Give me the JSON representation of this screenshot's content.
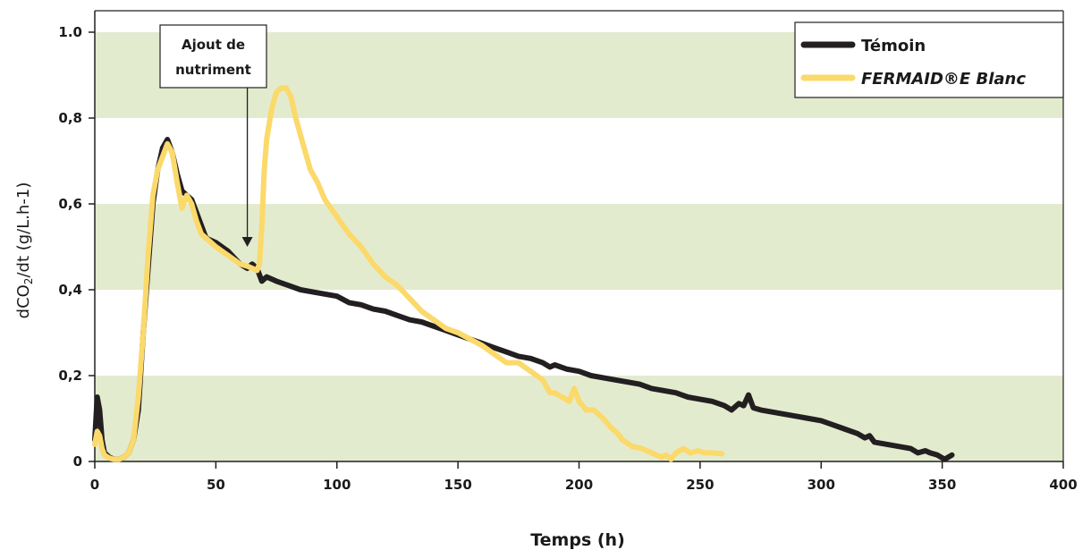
{
  "chart_data": {
    "type": "line",
    "title": "",
    "xlabel": "Temps (h)",
    "ylabel": {
      "prefix": "dCO",
      "sub": "2",
      "suffix": "/dt (g/L.h-1)"
    },
    "xlim": [
      0,
      400
    ],
    "ylim": [
      0,
      1.05
    ],
    "x_ticks": [
      {
        "value": 0,
        "label": "0"
      },
      {
        "value": 50,
        "label": "50"
      },
      {
        "value": 100,
        "label": "100"
      },
      {
        "value": 150,
        "label": "150"
      },
      {
        "value": 200,
        "label": "200"
      },
      {
        "value": 250,
        "label": "250"
      },
      {
        "value": 300,
        "label": "300"
      },
      {
        "value": 350,
        "label": "350"
      },
      {
        "value": 400,
        "label": "400"
      }
    ],
    "y_ticks": [
      {
        "value": 0,
        "label": "0"
      },
      {
        "value": 0.2,
        "label": "0,2"
      },
      {
        "value": 0.4,
        "label": "0,4"
      },
      {
        "value": 0.6,
        "label": "0,6"
      },
      {
        "value": 0.8,
        "label": "0,8"
      },
      {
        "value": 1.0,
        "label": "1.0"
      }
    ],
    "bands": [
      [
        0,
        0.2
      ],
      [
        0.4,
        0.6
      ],
      [
        0.8,
        1.0
      ]
    ],
    "band_color": "#e3ebcf",
    "legend_position": "top-right",
    "annotation": {
      "lines": [
        "Ajout de",
        "nutriment"
      ],
      "x": 63,
      "arrow_to_y": 0.5
    },
    "series": [
      {
        "name": "Témoin",
        "color": "#231f20",
        "points": [
          [
            0,
            0.05
          ],
          [
            1,
            0.15
          ],
          [
            2,
            0.12
          ],
          [
            3,
            0.05
          ],
          [
            4,
            0.02
          ],
          [
            6,
            0.01
          ],
          [
            8,
            0.005
          ],
          [
            10,
            0.005
          ],
          [
            12,
            0.01
          ],
          [
            14,
            0.02
          ],
          [
            16,
            0.05
          ],
          [
            18,
            0.12
          ],
          [
            20,
            0.3
          ],
          [
            22,
            0.45
          ],
          [
            24,
            0.6
          ],
          [
            26,
            0.68
          ],
          [
            28,
            0.73
          ],
          [
            30,
            0.75
          ],
          [
            32,
            0.72
          ],
          [
            34,
            0.67
          ],
          [
            36,
            0.63
          ],
          [
            38,
            0.62
          ],
          [
            40,
            0.61
          ],
          [
            42,
            0.58
          ],
          [
            44,
            0.55
          ],
          [
            46,
            0.52
          ],
          [
            50,
            0.51
          ],
          [
            55,
            0.49
          ],
          [
            60,
            0.46
          ],
          [
            63,
            0.45
          ],
          [
            65,
            0.46
          ],
          [
            67,
            0.45
          ],
          [
            69,
            0.42
          ],
          [
            71,
            0.43
          ],
          [
            75,
            0.42
          ],
          [
            80,
            0.41
          ],
          [
            85,
            0.4
          ],
          [
            90,
            0.395
          ],
          [
            95,
            0.39
          ],
          [
            100,
            0.385
          ],
          [
            105,
            0.37
          ],
          [
            110,
            0.365
          ],
          [
            115,
            0.355
          ],
          [
            120,
            0.35
          ],
          [
            125,
            0.34
          ],
          [
            130,
            0.33
          ],
          [
            135,
            0.325
          ],
          [
            140,
            0.315
          ],
          [
            145,
            0.305
          ],
          [
            150,
            0.295
          ],
          [
            155,
            0.285
          ],
          [
            160,
            0.275
          ],
          [
            165,
            0.265
          ],
          [
            170,
            0.255
          ],
          [
            175,
            0.245
          ],
          [
            180,
            0.24
          ],
          [
            185,
            0.23
          ],
          [
            188,
            0.22
          ],
          [
            190,
            0.225
          ],
          [
            195,
            0.215
          ],
          [
            200,
            0.21
          ],
          [
            205,
            0.2
          ],
          [
            210,
            0.195
          ],
          [
            215,
            0.19
          ],
          [
            220,
            0.185
          ],
          [
            225,
            0.18
          ],
          [
            230,
            0.17
          ],
          [
            235,
            0.165
          ],
          [
            240,
            0.16
          ],
          [
            245,
            0.15
          ],
          [
            250,
            0.145
          ],
          [
            255,
            0.14
          ],
          [
            260,
            0.13
          ],
          [
            263,
            0.12
          ],
          [
            266,
            0.135
          ],
          [
            268,
            0.13
          ],
          [
            270,
            0.155
          ],
          [
            272,
            0.125
          ],
          [
            275,
            0.12
          ],
          [
            280,
            0.115
          ],
          [
            285,
            0.11
          ],
          [
            290,
            0.105
          ],
          [
            295,
            0.1
          ],
          [
            300,
            0.095
          ],
          [
            305,
            0.085
          ],
          [
            310,
            0.075
          ],
          [
            315,
            0.065
          ],
          [
            318,
            0.055
          ],
          [
            320,
            0.06
          ],
          [
            322,
            0.045
          ],
          [
            327,
            0.04
          ],
          [
            332,
            0.035
          ],
          [
            337,
            0.03
          ],
          [
            340,
            0.02
          ],
          [
            343,
            0.025
          ],
          [
            345,
            0.02
          ],
          [
            348,
            0.015
          ],
          [
            351,
            0.005
          ],
          [
            354,
            0.015
          ]
        ]
      },
      {
        "name": "FERMAID®E Blanc",
        "color": "#fbd96a",
        "points": [
          [
            0,
            0.04
          ],
          [
            1,
            0.07
          ],
          [
            2,
            0.06
          ],
          [
            3,
            0.03
          ],
          [
            4,
            0.015
          ],
          [
            6,
            0.008
          ],
          [
            8,
            0.005
          ],
          [
            10,
            0.005
          ],
          [
            12,
            0.01
          ],
          [
            14,
            0.02
          ],
          [
            16,
            0.05
          ],
          [
            18,
            0.15
          ],
          [
            20,
            0.3
          ],
          [
            22,
            0.48
          ],
          [
            24,
            0.62
          ],
          [
            26,
            0.68
          ],
          [
            28,
            0.71
          ],
          [
            30,
            0.74
          ],
          [
            32,
            0.72
          ],
          [
            34,
            0.65
          ],
          [
            36,
            0.59
          ],
          [
            38,
            0.62
          ],
          [
            40,
            0.6
          ],
          [
            42,
            0.56
          ],
          [
            44,
            0.53
          ],
          [
            46,
            0.52
          ],
          [
            50,
            0.5
          ],
          [
            55,
            0.48
          ],
          [
            60,
            0.46
          ],
          [
            63,
            0.455
          ],
          [
            65,
            0.45
          ],
          [
            67,
            0.445
          ],
          [
            68,
            0.46
          ],
          [
            69,
            0.55
          ],
          [
            70,
            0.68
          ],
          [
            71,
            0.75
          ],
          [
            73,
            0.82
          ],
          [
            75,
            0.86
          ],
          [
            77,
            0.87
          ],
          [
            79,
            0.87
          ],
          [
            81,
            0.85
          ],
          [
            83,
            0.8
          ],
          [
            86,
            0.74
          ],
          [
            89,
            0.68
          ],
          [
            92,
            0.65
          ],
          [
            95,
            0.61
          ],
          [
            100,
            0.57
          ],
          [
            105,
            0.53
          ],
          [
            110,
            0.5
          ],
          [
            115,
            0.46
          ],
          [
            120,
            0.43
          ],
          [
            125,
            0.41
          ],
          [
            130,
            0.38
          ],
          [
            135,
            0.35
          ],
          [
            140,
            0.33
          ],
          [
            145,
            0.31
          ],
          [
            150,
            0.3
          ],
          [
            155,
            0.285
          ],
          [
            160,
            0.27
          ],
          [
            165,
            0.25
          ],
          [
            170,
            0.23
          ],
          [
            175,
            0.23
          ],
          [
            180,
            0.21
          ],
          [
            185,
            0.19
          ],
          [
            188,
            0.16
          ],
          [
            190,
            0.16
          ],
          [
            193,
            0.15
          ],
          [
            196,
            0.14
          ],
          [
            198,
            0.17
          ],
          [
            200,
            0.14
          ],
          [
            203,
            0.12
          ],
          [
            206,
            0.12
          ],
          [
            210,
            0.1
          ],
          [
            213,
            0.08
          ],
          [
            216,
            0.065
          ],
          [
            218,
            0.05
          ],
          [
            222,
            0.035
          ],
          [
            226,
            0.03
          ],
          [
            230,
            0.02
          ],
          [
            234,
            0.01
          ],
          [
            236,
            0.015
          ],
          [
            238,
            0.005
          ],
          [
            240,
            0.02
          ],
          [
            243,
            0.03
          ],
          [
            246,
            0.02
          ],
          [
            249,
            0.025
          ],
          [
            252,
            0.02
          ],
          [
            255,
            0.02
          ],
          [
            259,
            0.018
          ]
        ]
      }
    ]
  }
}
